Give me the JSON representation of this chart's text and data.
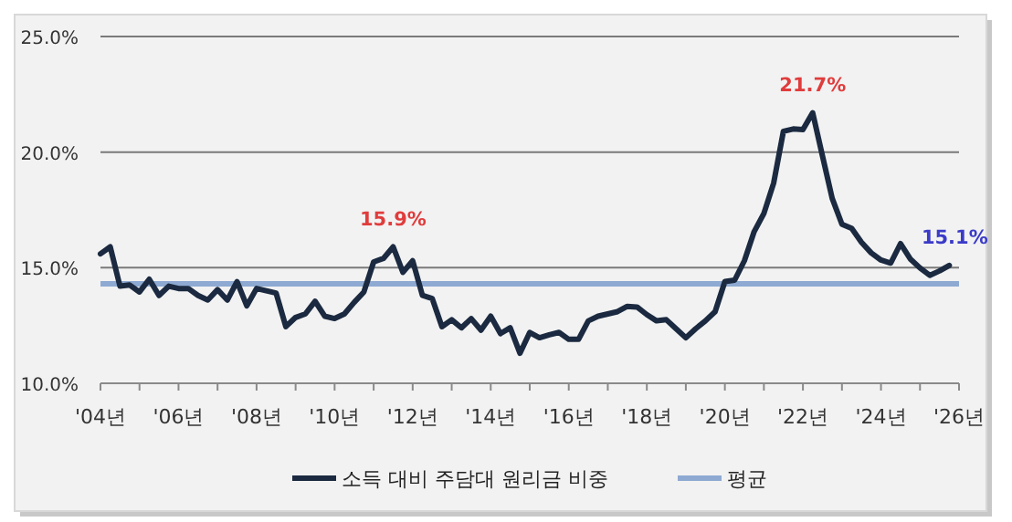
{
  "chart_data": {
    "type": "line",
    "categories": [
      "'04년",
      null,
      null,
      null,
      null,
      null,
      null,
      null,
      "'06년",
      null,
      null,
      null,
      null,
      null,
      null,
      null,
      "'08년",
      null,
      null,
      null,
      null,
      null,
      null,
      null,
      "'10년",
      null,
      null,
      null,
      null,
      null,
      null,
      null,
      "'12년",
      null,
      null,
      null,
      null,
      null,
      null,
      null,
      "'14년",
      null,
      null,
      null,
      null,
      null,
      null,
      null,
      "'16년",
      null,
      null,
      null,
      null,
      null,
      null,
      null,
      "'18년",
      null,
      null,
      null,
      null,
      null,
      null,
      null,
      "'20년",
      null,
      null,
      null,
      null,
      null,
      null,
      null,
      "'22년",
      null,
      null,
      null,
      null,
      null,
      null,
      null,
      "'24년",
      null,
      null,
      null,
      null,
      null,
      null,
      null,
      "'26년"
    ],
    "series": [
      {
        "name": "소득 대비 주담대 원리금 비중",
        "color": "#1b2a40",
        "values": [
          15.6,
          15.9,
          14.2,
          14.25,
          13.95,
          14.5,
          13.8,
          14.2,
          14.1,
          14.1,
          13.8,
          13.6,
          14.05,
          13.6,
          14.4,
          13.35,
          14.1,
          14.0,
          13.9,
          12.45,
          12.85,
          13.0,
          13.55,
          12.9,
          12.8,
          13.0,
          13.5,
          13.95,
          15.25,
          15.4,
          15.9,
          14.8,
          15.3,
          13.8,
          13.67,
          12.45,
          12.75,
          12.4,
          12.8,
          12.3,
          12.9,
          12.15,
          12.4,
          11.3,
          12.2,
          11.97,
          12.1,
          12.2,
          11.9,
          11.9,
          12.7,
          12.9,
          13.0,
          13.1,
          13.33,
          13.3,
          12.97,
          12.7,
          12.75,
          12.36,
          11.97,
          12.36,
          12.7,
          13.1,
          14.4,
          14.46,
          15.3,
          16.56,
          17.35,
          18.66,
          20.9,
          21.0,
          20.97,
          21.7,
          19.84,
          18.0,
          16.88,
          16.7,
          16.1,
          15.64,
          15.33,
          15.2,
          16.04,
          15.38,
          14.99,
          14.67,
          14.86,
          15.1,
          null
        ]
      }
    ],
    "ref_lines": [
      {
        "axis": "y",
        "value": 14.3,
        "label": "평균",
        "color": "#8eaad2"
      }
    ],
    "annotations": [
      {
        "text": "15.9%",
        "y": 15.9
      },
      {
        "text": "21.7%",
        "y": 21.7
      },
      {
        "text": "15.1%",
        "y": 15.1
      }
    ],
    "ylim": [
      10,
      25
    ],
    "yticks": [
      {
        "value": 10,
        "label": "10.0%"
      },
      {
        "value": 15,
        "label": "15.0%"
      },
      {
        "value": 20,
        "label": "20.0%"
      },
      {
        "value": 25,
        "label": "25.0%"
      }
    ],
    "grid": "y",
    "legend": "bottom",
    "marker": "none",
    "line_style": "solid"
  }
}
